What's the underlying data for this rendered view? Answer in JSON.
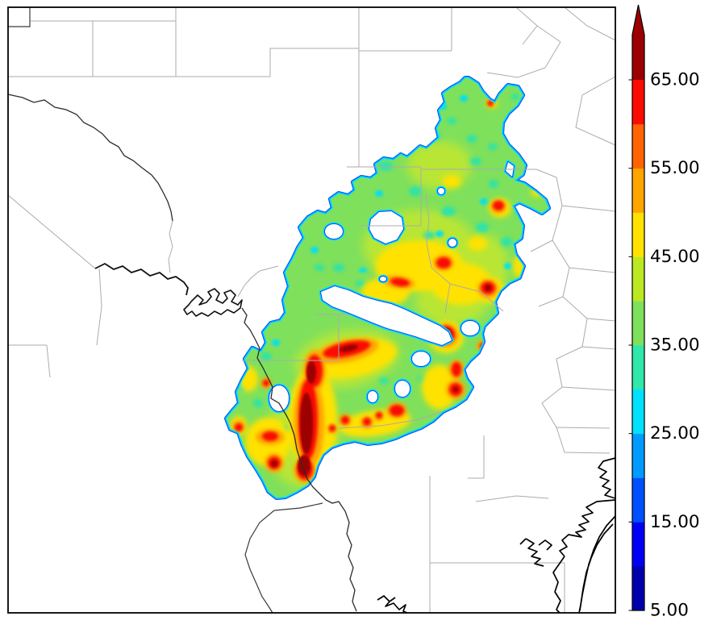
{
  "colorbar": {
    "labels": [
      "65.00",
      "55.00",
      "45.00",
      "35.00",
      "25.00",
      "15.00",
      "5.00"
    ],
    "tick_values": [
      65,
      55,
      45,
      35,
      25,
      15,
      5
    ],
    "min": 5,
    "max": 65,
    "interval": 5,
    "segment_colors": [
      "#0000AD",
      "#0000F5",
      "#004FFF",
      "#009BFF",
      "#00E1FF",
      "#30E8AC",
      "#7FE05C",
      "#BCE822",
      "#FFE200",
      "#FFA500",
      "#FF6400",
      "#F90D00"
    ],
    "over_color": "#9C0000",
    "extend": "max"
  },
  "map": {
    "background": "#FFFFFF",
    "frame_color": "#000000",
    "county_line_color": "#ABABAB",
    "boundary_line_color": "#3A3A3A",
    "water_line_color": "#000000",
    "region_base_color": "#7FE05C",
    "region_edge_colors": [
      "#0043EC",
      "#009BFF",
      "#00E1FF"
    ],
    "hole_edge_colors": [
      "#00E1FF",
      "#0050F5"
    ]
  },
  "chart_data": {
    "type": "heatmap",
    "levels": [
      5,
      10,
      15,
      20,
      25,
      30,
      35,
      40,
      45,
      50,
      55,
      60,
      65
    ],
    "colorbar_tick_labels": [
      "5.00",
      "15.00",
      "25.00",
      "35.00",
      "45.00",
      "55.00",
      "65.00"
    ],
    "value_range_interior": [
      30,
      45
    ],
    "heat_layers": [
      {
        "name": "yellow-green-wash",
        "value": 42,
        "color": "#B9E636",
        "blur": "f6",
        "blobs": [
          [
            520,
            305,
            70,
            45,
            0
          ],
          [
            560,
            375,
            45,
            28,
            0
          ],
          [
            430,
            445,
            65,
            35,
            -10
          ],
          [
            375,
            545,
            45,
            60,
            0
          ],
          [
            600,
            330,
            30,
            40,
            0
          ],
          [
            545,
            205,
            40,
            30,
            0
          ]
        ]
      },
      {
        "name": "teal-patches",
        "value": 32,
        "color": "#2DE3A8",
        "blur": "f3",
        "blobs": [
          [
            505,
            150,
            8,
            6,
            0
          ],
          [
            540,
            168,
            7,
            5,
            0
          ],
          [
            478,
            206,
            9,
            6,
            0
          ],
          [
            515,
            237,
            8,
            6,
            0
          ],
          [
            556,
            262,
            9,
            6,
            0
          ],
          [
            590,
            200,
            7,
            5,
            0
          ],
          [
            612,
            228,
            6,
            5,
            0
          ],
          [
            628,
            300,
            7,
            6,
            0
          ],
          [
            598,
            282,
            8,
            6,
            0
          ],
          [
            532,
            292,
            7,
            5,
            0
          ],
          [
            585,
            172,
            6,
            5,
            0
          ],
          [
            611,
            182,
            6,
            4,
            0
          ],
          [
            643,
            262,
            5,
            4,
            0
          ],
          [
            420,
            332,
            7,
            5,
            0
          ],
          [
            396,
            332,
            6,
            4,
            0
          ],
          [
            447,
            352,
            6,
            4,
            0
          ],
          [
            330,
            442,
            7,
            5,
            0
          ],
          [
            320,
            500,
            6,
            5,
            0
          ],
          [
            356,
            532,
            7,
            5,
            0
          ],
          [
            476,
            472,
            6,
            4,
            0
          ],
          [
            524,
            470,
            6,
            4,
            0
          ],
          [
            560,
            150,
            6,
            4,
            0
          ],
          [
            639,
            120,
            5,
            4,
            0
          ]
        ]
      },
      {
        "name": "cyan-patches",
        "value": 27,
        "color": "#00DFF5",
        "blur": "f2",
        "blobs": [
          [
            548,
            132,
            6,
            4,
            0
          ],
          [
            575,
            122,
            5,
            4,
            0
          ],
          [
            495,
            178,
            6,
            4,
            0
          ],
          [
            470,
            240,
            5,
            4,
            0
          ],
          [
            545,
            290,
            5,
            4,
            0
          ],
          [
            600,
            250,
            5,
            4,
            0
          ],
          [
            390,
            310,
            5,
            4,
            0
          ],
          [
            342,
            425,
            5,
            4,
            0
          ],
          [
            300,
            480,
            5,
            4,
            0
          ],
          [
            450,
            335,
            5,
            3,
            0
          ],
          [
            630,
            330,
            5,
            4,
            0
          ]
        ]
      },
      {
        "name": "yellow",
        "value": 47,
        "color": "#FFE200",
        "blur": "f4",
        "blobs": [
          [
            520,
            330,
            55,
            32,
            0
          ],
          [
            572,
            352,
            38,
            26,
            0
          ],
          [
            478,
            362,
            30,
            18,
            0
          ],
          [
            438,
            445,
            55,
            22,
            -12
          ],
          [
            388,
            520,
            30,
            65,
            0
          ],
          [
            332,
            548,
            28,
            30,
            0
          ],
          [
            308,
            470,
            12,
            16,
            0
          ],
          [
            296,
            528,
            10,
            12,
            0
          ],
          [
            545,
            480,
            22,
            28,
            0
          ],
          [
            465,
            525,
            45,
            16,
            -8
          ],
          [
            553,
            418,
            22,
            20,
            0
          ],
          [
            608,
            360,
            18,
            16,
            0
          ],
          [
            620,
            258,
            14,
            12,
            0
          ],
          [
            610,
            128,
            7,
            6,
            0
          ],
          [
            666,
            238,
            8,
            6,
            0
          ],
          [
            560,
            225,
            12,
            8,
            0
          ],
          [
            592,
            302,
            12,
            9,
            0
          ],
          [
            643,
            330,
            7,
            14,
            0
          ]
        ]
      },
      {
        "name": "orange",
        "value": 52,
        "color": "#FFA500",
        "blur": "f3",
        "blobs": [
          [
            430,
            435,
            40,
            14,
            -12
          ],
          [
            390,
            460,
            14,
            26,
            0
          ],
          [
            383,
            523,
            19,
            58,
            0
          ],
          [
            378,
            583,
            14,
            16,
            0
          ],
          [
            335,
            542,
            18,
            10,
            0
          ],
          [
            340,
            574,
            12,
            12,
            0
          ],
          [
            296,
            529,
            8,
            8,
            0
          ],
          [
            553,
            416,
            16,
            15,
            0
          ],
          [
            565,
            483,
            12,
            12,
            0
          ],
          [
            492,
            509,
            13,
            10,
            0
          ],
          [
            605,
            358,
            13,
            12,
            0
          ],
          [
            618,
            256,
            10,
            9,
            0
          ],
          [
            550,
            326,
            13,
            10,
            0
          ],
          [
            495,
            350,
            20,
            8,
            8
          ],
          [
            428,
            521,
            8,
            8,
            0
          ],
          [
            455,
            524,
            8,
            8,
            0
          ],
          [
            412,
            532,
            6,
            6,
            0
          ],
          [
            470,
            516,
            6,
            6,
            0
          ],
          [
            608,
            128,
            5,
            5,
            0
          ],
          [
            330,
            475,
            7,
            7,
            0
          ],
          [
            566,
            458,
            10,
            12,
            0
          ],
          [
            599,
            429,
            8,
            7,
            0
          ],
          [
            448,
            562,
            7,
            7,
            0
          ],
          [
            430,
            558,
            6,
            6,
            0
          ]
        ]
      },
      {
        "name": "red",
        "value": 62,
        "color": "#F90D00",
        "blur": "f2",
        "blobs": [
          [
            430,
            433,
            30,
            9,
            -12
          ],
          [
            390,
            460,
            10,
            20,
            0
          ],
          [
            382,
            520,
            12,
            50,
            0
          ],
          [
            378,
            582,
            10,
            13,
            0
          ],
          [
            553,
            415,
            11,
            11,
            0
          ],
          [
            565,
            483,
            8,
            8,
            0
          ],
          [
            492,
            509,
            9,
            7,
            0
          ],
          [
            605,
            357,
            9,
            8,
            0
          ],
          [
            618,
            255,
            7,
            6,
            0
          ],
          [
            550,
            326,
            9,
            7,
            0
          ],
          [
            496,
            350,
            12,
            5,
            8
          ],
          [
            428,
            521,
            5,
            5,
            0
          ],
          [
            455,
            523,
            5,
            5,
            0
          ],
          [
            412,
            531,
            4,
            4,
            0
          ],
          [
            470,
            515,
            4,
            4,
            0
          ],
          [
            335,
            541,
            10,
            6,
            0
          ],
          [
            340,
            574,
            8,
            8,
            0
          ],
          [
            296,
            530,
            5,
            5,
            0
          ],
          [
            608,
            128,
            3.5,
            3.5,
            0
          ],
          [
            566,
            458,
            6,
            9,
            0
          ],
          [
            599,
            429,
            4,
            4,
            0
          ],
          [
            448,
            562,
            5,
            5,
            0
          ],
          [
            430,
            558,
            4,
            4,
            0
          ],
          [
            330,
            475,
            4,
            4,
            0
          ]
        ]
      },
      {
        "name": "dark-red",
        "value": 67,
        "color": "#9C0000",
        "blur": "f15",
        "blobs": [
          [
            380,
            525,
            8,
            38,
            0
          ],
          [
            377,
            577,
            8,
            13,
            0
          ],
          [
            553,
            414,
            6,
            7,
            0
          ],
          [
            565,
            483,
            3,
            3,
            0
          ],
          [
            605,
            357,
            4,
            4,
            0
          ],
          [
            386,
            462,
            6,
            14,
            0
          ],
          [
            340,
            575,
            4,
            4,
            0
          ],
          [
            432,
            432,
            12,
            4,
            -12
          ]
        ]
      }
    ]
  }
}
